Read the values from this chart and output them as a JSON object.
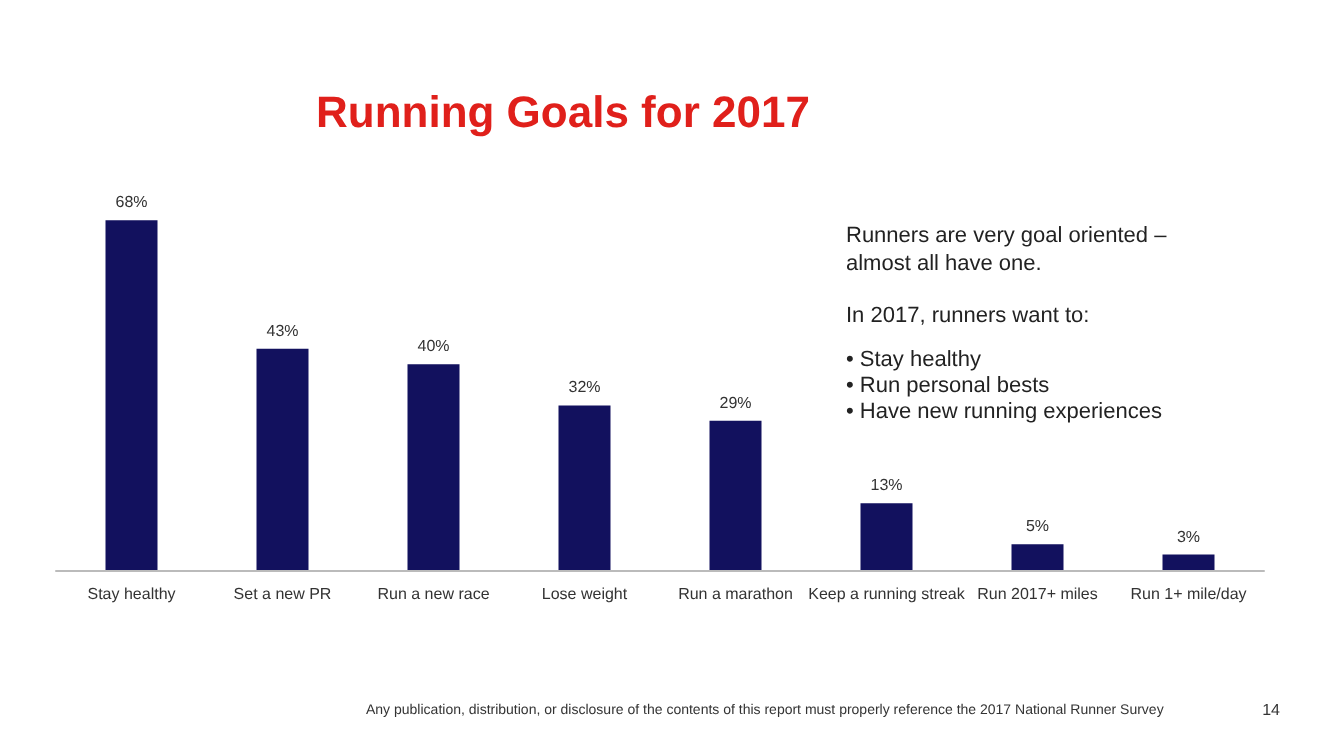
{
  "chart_data": {
    "type": "bar",
    "title": "Running Goals for 2017",
    "categories": [
      "Stay healthy",
      "Set a new PR",
      "Run a new race",
      "Lose weight",
      "Run a marathon",
      "Keep a running streak",
      "Run 2017+ miles",
      "Run 1+ mile/day"
    ],
    "values": [
      68,
      43,
      40,
      32,
      29,
      13,
      5,
      3
    ],
    "color": "#12115e",
    "value_labels": [
      "68%",
      "43%",
      "40%",
      "32%",
      "29%",
      "13%",
      "5%",
      "3%"
    ],
    "annotations": [
      "Runners are very goal oriented – almost all have one.",
      "In 2017, runners want to:",
      "• Stay healthy",
      "• Run personal bests",
      "• Have new running experiences",
      "Any publication, distribution, or disclosure of the contents of this report must properly reference the 2017 National Runner Survey",
      "14"
    ]
  }
}
